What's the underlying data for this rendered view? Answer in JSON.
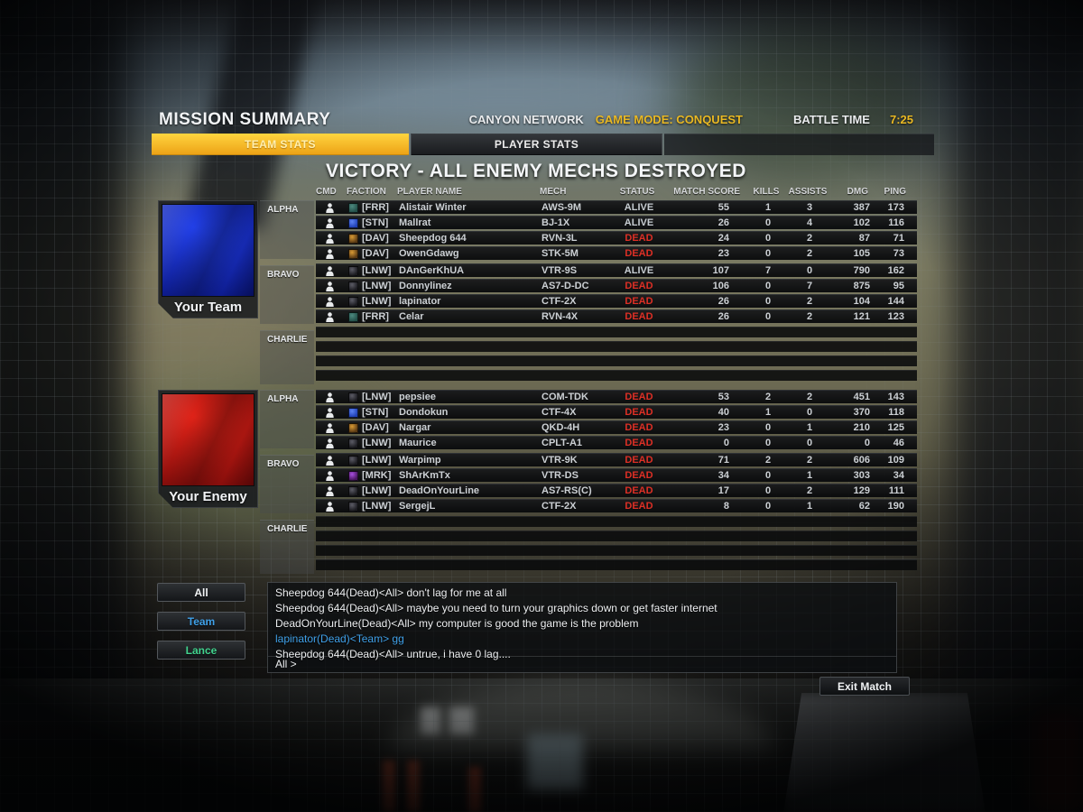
{
  "header": {
    "title": "MISSION SUMMARY",
    "map": "CANYON NETWORK",
    "game_mode": "GAME MODE: CONQUEST",
    "battle_time_label": "BATTLE TIME",
    "battle_time": "7:25"
  },
  "tabs": [
    {
      "label": "TEAM STATS",
      "active": true
    },
    {
      "label": "PLAYER STATS",
      "active": false
    }
  ],
  "result_banner": "VICTORY - ALL ENEMY MECHS DESTROYED",
  "columns": [
    "CMD",
    "FACTION",
    "PLAYER NAME",
    "MECH",
    "STATUS",
    "MATCH SCORE",
    "KILLS",
    "ASSISTS",
    "DMG",
    "PING"
  ],
  "accent_color": "#f3c31c",
  "status_colors": {
    "ALIVE": "#c6ccd1",
    "DEAD": "#dd2f25"
  },
  "faction_colors": {
    "FRR": {
      "base": "#234f49",
      "hi": "#4d8a80"
    },
    "STN": {
      "base": "#1f3fb4",
      "hi": "#5d84f2"
    },
    "DAV": {
      "base": "#5a3a14",
      "hi": "#d89a34"
    },
    "LNW": {
      "base": "#1b1b20",
      "hi": "#5c5c66"
    },
    "MRK": {
      "base": "#4a1660",
      "hi": "#a84fe0"
    }
  },
  "teams": [
    {
      "name": "Your Team",
      "flag_top": "#2240e8",
      "flag_bottom": "#081277",
      "sections": [
        {
          "lance": "ALPHA",
          "rows": [
            {
              "faction": "FRR",
              "tag": "[FRR]",
              "name": "Alistair Winter",
              "mech": "AWS-9M",
              "status": "ALIVE",
              "score": "55",
              "kills": "1",
              "assists": "3",
              "dmg": "387",
              "ping": "173"
            },
            {
              "faction": "STN",
              "tag": "[STN]",
              "name": "Mallrat",
              "mech": "BJ-1X",
              "status": "ALIVE",
              "score": "26",
              "kills": "0",
              "assists": "4",
              "dmg": "102",
              "ping": "116"
            },
            {
              "faction": "DAV",
              "tag": "[DAV]",
              "name": "Sheepdog 644",
              "mech": "RVN-3L",
              "status": "DEAD",
              "score": "24",
              "kills": "0",
              "assists": "2",
              "dmg": "87",
              "ping": "71"
            },
            {
              "faction": "DAV",
              "tag": "[DAV]",
              "name": "OwenGdawg",
              "mech": "STK-5M",
              "status": "DEAD",
              "score": "23",
              "kills": "0",
              "assists": "2",
              "dmg": "105",
              "ping": "73"
            }
          ]
        },
        {
          "lance": "BRAVO",
          "rows": [
            {
              "faction": "LNW",
              "tag": "[LNW]",
              "name": "DAnGerKhUA",
              "mech": "VTR-9S",
              "status": "ALIVE",
              "score": "107",
              "kills": "7",
              "assists": "0",
              "dmg": "790",
              "ping": "162"
            },
            {
              "faction": "LNW",
              "tag": "[LNW]",
              "name": "Donnylinez",
              "mech": "AS7-D-DC",
              "status": "DEAD",
              "score": "106",
              "kills": "0",
              "assists": "7",
              "dmg": "875",
              "ping": "95"
            },
            {
              "faction": "LNW",
              "tag": "[LNW]",
              "name": "lapinator",
              "mech": "CTF-2X",
              "status": "DEAD",
              "score": "26",
              "kills": "0",
              "assists": "2",
              "dmg": "104",
              "ping": "144"
            },
            {
              "faction": "FRR",
              "tag": "[FRR]",
              "name": "Celar",
              "mech": "RVN-4X",
              "status": "DEAD",
              "score": "26",
              "kills": "0",
              "assists": "2",
              "dmg": "121",
              "ping": "123"
            }
          ]
        },
        {
          "lance": "CHARLIE",
          "rows": [],
          "empty_slots": 4
        }
      ]
    },
    {
      "name": "Your Enemy",
      "flag_top": "#e02318",
      "flag_bottom": "#700808",
      "sections": [
        {
          "lance": "ALPHA",
          "rows": [
            {
              "faction": "LNW",
              "tag": "[LNW]",
              "name": "pepsiee",
              "mech": "COM-TDK",
              "status": "DEAD",
              "score": "53",
              "kills": "2",
              "assists": "2",
              "dmg": "451",
              "ping": "143"
            },
            {
              "faction": "STN",
              "tag": "[STN]",
              "name": "Dondokun",
              "mech": "CTF-4X",
              "status": "DEAD",
              "score": "40",
              "kills": "1",
              "assists": "0",
              "dmg": "370",
              "ping": "118"
            },
            {
              "faction": "DAV",
              "tag": "[DAV]",
              "name": "Nargar",
              "mech": "QKD-4H",
              "status": "DEAD",
              "score": "23",
              "kills": "0",
              "assists": "1",
              "dmg": "210",
              "ping": "125"
            },
            {
              "faction": "LNW",
              "tag": "[LNW]",
              "name": "Maurice",
              "mech": "CPLT-A1",
              "status": "DEAD",
              "score": "0",
              "kills": "0",
              "assists": "0",
              "dmg": "0",
              "ping": "46"
            }
          ]
        },
        {
          "lance": "BRAVO",
          "rows": [
            {
              "faction": "LNW",
              "tag": "[LNW]",
              "name": "Warpimp",
              "mech": "VTR-9K",
              "status": "DEAD",
              "score": "71",
              "kills": "2",
              "assists": "2",
              "dmg": "606",
              "ping": "109"
            },
            {
              "faction": "MRK",
              "tag": "[MRK]",
              "name": "ShArKmTx",
              "mech": "VTR-DS",
              "status": "DEAD",
              "score": "34",
              "kills": "0",
              "assists": "1",
              "dmg": "303",
              "ping": "34"
            },
            {
              "faction": "LNW",
              "tag": "[LNW]",
              "name": "DeadOnYourLine",
              "mech": "AS7-RS(C)",
              "status": "DEAD",
              "score": "17",
              "kills": "0",
              "assists": "2",
              "dmg": "129",
              "ping": "111"
            },
            {
              "faction": "LNW",
              "tag": "[LNW]",
              "name": "SergejL",
              "mech": "CTF-2X",
              "status": "DEAD",
              "score": "8",
              "kills": "0",
              "assists": "1",
              "dmg": "62",
              "ping": "190"
            }
          ]
        },
        {
          "lance": "CHARLIE",
          "rows": [],
          "empty_slots": 4
        }
      ]
    }
  ],
  "chat": {
    "filters": [
      {
        "label": "All",
        "color": "#f2f4f6"
      },
      {
        "label": "Team",
        "color": "#3fa0e8"
      },
      {
        "label": "Lance",
        "color": "#41d28e"
      }
    ],
    "channel_colors": {
      "all": "#eceef0",
      "team": "#3fa0e8"
    },
    "messages": [
      {
        "channel": "all",
        "text": "Sheepdog 644(Dead)<All> don't lag for me at all"
      },
      {
        "channel": "all",
        "text": "Sheepdog 644(Dead)<All> maybe you need to turn your graphics down or get faster internet"
      },
      {
        "channel": "all",
        "text": "DeadOnYourLine(Dead)<All> my computer is good the game is the problem"
      },
      {
        "channel": "team",
        "text": "lapinator(Dead)<Team> gg"
      },
      {
        "channel": "all",
        "text": "Sheepdog 644(Dead)<All> untrue, i have 0 lag...."
      }
    ],
    "input_prefix": "All >"
  },
  "exit_button": "Exit Match"
}
